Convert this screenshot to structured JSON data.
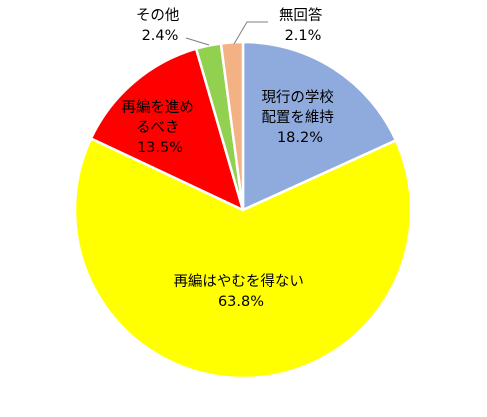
{
  "chart_data": {
    "type": "pie",
    "title": "",
    "slices": [
      {
        "label_lines": [
          "現行の学校",
          "配置を維持"
        ],
        "value": 18.2,
        "value_text": "18.2%",
        "color": "#8faadc"
      },
      {
        "label_lines": [
          "再編はやむを得ない"
        ],
        "value": 63.8,
        "value_text": "63.8%",
        "color": "#ffff00"
      },
      {
        "label_lines": [
          "再編を進め",
          "るべき"
        ],
        "value": 13.5,
        "value_text": "13.5%",
        "color": "#ff0000"
      },
      {
        "label_lines": [
          "その他"
        ],
        "value": 2.4,
        "value_text": "2.4%",
        "color": "#92d050"
      },
      {
        "label_lines": [
          "無回答"
        ],
        "value": 2.1,
        "value_text": "2.1%",
        "color": "#f4b183"
      }
    ],
    "start": "12 o'clock",
    "direction": "clockwise",
    "legend": "none"
  }
}
